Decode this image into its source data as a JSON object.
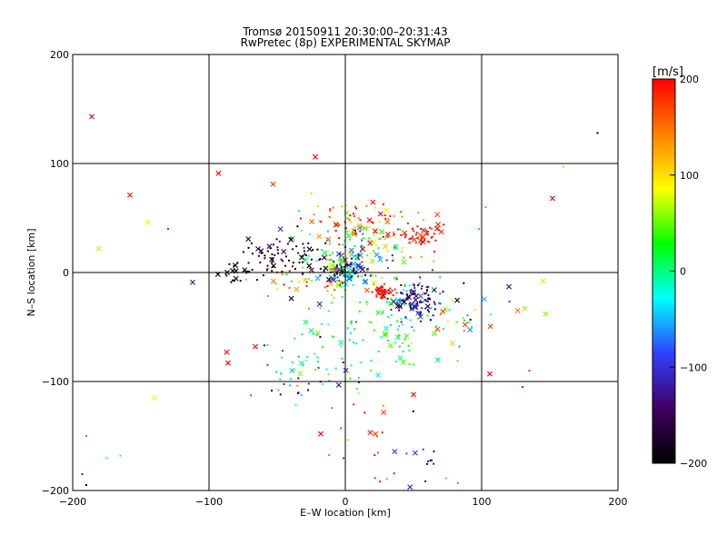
{
  "chart_data": {
    "type": "scatter",
    "title": "Tromsø 20150911 20:30:00–20:31:43",
    "subtitle": "RwPretec (8p) EXPERIMENTAL SKYMAP",
    "xlabel": "E–W location [km]",
    "ylabel": "N–S location [km]",
    "xlim": [
      -200,
      200
    ],
    "ylim": [
      -200,
      200
    ],
    "xticks": [
      -200,
      -100,
      0,
      100,
      200
    ],
    "yticks": [
      -200,
      -100,
      0,
      100,
      200
    ],
    "xtick_labels": [
      "−200",
      "−100",
      "0",
      "100",
      "200"
    ],
    "ytick_labels": [
      "−200",
      "−100",
      "0",
      "100",
      "200"
    ],
    "grid_lines_x": [
      -100,
      0,
      100
    ],
    "grid_lines_y": [
      -100,
      0,
      100
    ],
    "colorbar": {
      "label": "[m/s]",
      "range": [
        -200,
        200
      ],
      "ticks": [
        -200,
        -100,
        0,
        100,
        200
      ],
      "tick_labels": [
        "−200",
        "−100",
        "0",
        "100",
        "200"
      ],
      "colors": [
        "#000000",
        "#400060",
        "#3040ff",
        "#00ffff",
        "#00ff00",
        "#ffff00",
        "#ff8000",
        "#ff0000"
      ]
    },
    "clusters": [
      {
        "x": 0,
        "y": 0,
        "sx": 8,
        "sy": 7,
        "n": 110,
        "vmean": -100,
        "vspread": 90
      },
      {
        "x": 52,
        "y": -25,
        "sx": 9,
        "sy": 8,
        "n": 120,
        "vmean": -130,
        "vspread": 50
      },
      {
        "x": 28,
        "y": -18,
        "sx": 5,
        "sy": 4,
        "n": 45,
        "vmean": 195,
        "vspread": 10
      },
      {
        "x": 52,
        "y": 32,
        "sx": 8,
        "sy": 6,
        "n": 55,
        "vmean": 190,
        "vspread": 15
      },
      {
        "x": 8,
        "y": 18,
        "sx": 20,
        "sy": 18,
        "n": 130,
        "vmean": 20,
        "vspread": 80
      },
      {
        "x": -40,
        "y": 15,
        "sx": 15,
        "sy": 10,
        "n": 70,
        "vmean": -180,
        "vspread": 40
      },
      {
        "x": 15,
        "y": 48,
        "sx": 20,
        "sy": 10,
        "n": 80,
        "vmean": 150,
        "vspread": 70
      },
      {
        "x": -30,
        "y": -8,
        "sx": 20,
        "sy": 10,
        "n": 45,
        "vmean": 80,
        "vspread": 100
      },
      {
        "x": 25,
        "y": -55,
        "sx": 25,
        "sy": 15,
        "n": 90,
        "vmean": 15,
        "vspread": 30
      },
      {
        "x": -20,
        "y": -95,
        "sx": 20,
        "sy": 15,
        "n": 55,
        "vmean": -40,
        "vspread": 80
      },
      {
        "x": 80,
        "y": -35,
        "sx": 25,
        "sy": 15,
        "n": 30,
        "vmean": 10,
        "vspread": 150
      },
      {
        "x": -75,
        "y": 2,
        "sx": 10,
        "sy": 8,
        "n": 25,
        "vmean": -200,
        "vspread": 10
      },
      {
        "x": 15,
        "y": -155,
        "sx": 15,
        "sy": 25,
        "n": 20,
        "vmean": 170,
        "vspread": 30
      },
      {
        "x": 60,
        "y": -175,
        "sx": 10,
        "sy": 15,
        "n": 15,
        "vmean": -120,
        "vspread": 60
      }
    ],
    "outliers": [
      {
        "x": -186,
        "y": 143,
        "v": 200,
        "m": "x"
      },
      {
        "x": -158,
        "y": 71,
        "v": 190,
        "m": "x"
      },
      {
        "x": -145,
        "y": 46,
        "v": 80,
        "m": "x"
      },
      {
        "x": -181,
        "y": 22,
        "v": 70,
        "m": "x"
      },
      {
        "x": -140,
        "y": -115,
        "v": 90,
        "m": "x"
      },
      {
        "x": -112,
        "y": -9,
        "v": -120,
        "m": "x"
      },
      {
        "x": 152,
        "y": 68,
        "v": 200,
        "m": "x"
      },
      {
        "x": 145,
        "y": -8,
        "v": 70,
        "m": "x"
      },
      {
        "x": 147,
        "y": -38,
        "v": 60,
        "m": "x"
      },
      {
        "x": 120,
        "y": -13,
        "v": -130,
        "m": "x"
      },
      {
        "x": 106,
        "y": -93,
        "v": 200,
        "m": "x"
      },
      {
        "x": -93,
        "y": 91,
        "v": 200,
        "m": "x"
      },
      {
        "x": -22,
        "y": 106,
        "v": 200,
        "m": "x"
      },
      {
        "x": -53,
        "y": 81,
        "v": 170,
        "m": "x"
      },
      {
        "x": -87,
        "y": -73,
        "v": 200,
        "m": "x"
      },
      {
        "x": -86,
        "y": -83,
        "v": 200,
        "m": "x"
      },
      {
        "x": -66,
        "y": -68,
        "v": 200,
        "m": "x"
      },
      {
        "x": 50,
        "y": -112,
        "v": 200,
        "m": "x"
      },
      {
        "x": -18,
        "y": -148,
        "v": 200,
        "m": "x"
      },
      {
        "x": 160,
        "y": 97,
        "v": 110,
        "m": "."
      },
      {
        "x": 185,
        "y": 128,
        "v": -200,
        "m": "."
      },
      {
        "x": -193,
        "y": -185,
        "v": -110,
        "m": "."
      },
      {
        "x": -190,
        "y": -195,
        "v": -200,
        "m": "."
      },
      {
        "x": -165,
        "y": -168,
        "v": -20,
        "m": "."
      },
      {
        "x": -175,
        "y": -170,
        "v": -30,
        "m": "."
      },
      {
        "x": -190,
        "y": -150,
        "v": -60,
        "m": "."
      },
      {
        "x": 130,
        "y": -105,
        "v": 200,
        "m": "."
      },
      {
        "x": 135,
        "y": -90,
        "v": 180,
        "m": "."
      },
      {
        "x": 98,
        "y": 40,
        "v": 20,
        "m": "."
      },
      {
        "x": 103,
        "y": 60,
        "v": 10,
        "m": "."
      },
      {
        "x": -130,
        "y": 40,
        "v": 190,
        "m": "."
      }
    ]
  }
}
